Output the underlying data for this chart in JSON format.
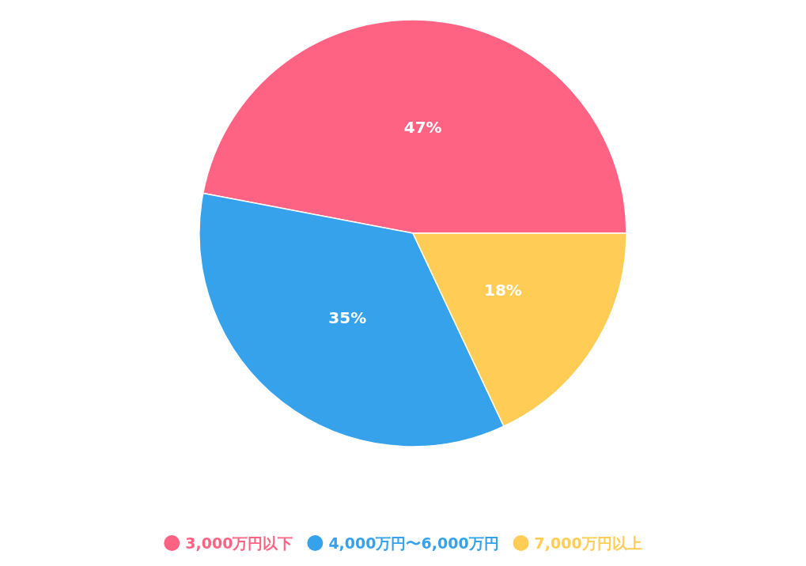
{
  "chart_data": {
    "type": "pie",
    "categories": [
      "3,000万円以下",
      "4,000万円〜6,000万円",
      "7,000万円以上"
    ],
    "values": [
      47,
      35,
      18
    ],
    "colors": [
      "#ff6384",
      "#36a2eb",
      "#ffcd56"
    ],
    "value_labels": [
      "47%",
      "35%",
      "18%"
    ],
    "legend": "bottom"
  }
}
